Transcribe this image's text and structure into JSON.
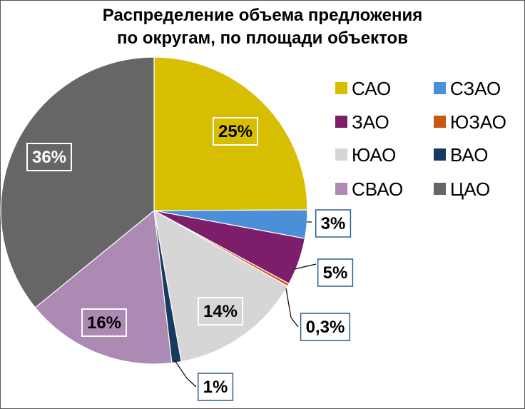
{
  "chart_data": {
    "type": "pie",
    "title_lines": [
      "Распределение объема предложения",
      "по округам, по площади объектов"
    ],
    "slices": [
      {
        "name": "САО",
        "value": 25,
        "label": "25%",
        "color": "#D8BE00"
      },
      {
        "name": "СЗАО",
        "value": 3,
        "label": "3%",
        "color": "#4A8FD8"
      },
      {
        "name": "ЗАО",
        "value": 5,
        "label": "5%",
        "color": "#7C1E6A"
      },
      {
        "name": "ЮЗАО",
        "value": 0.3,
        "label": "0,3%",
        "color": "#C85A10"
      },
      {
        "name": "ЮАО",
        "value": 14,
        "label": "14%",
        "color": "#D6D6D6"
      },
      {
        "name": "ВАО",
        "value": 1,
        "label": "1%",
        "color": "#173A5E"
      },
      {
        "name": "СВАО",
        "value": 16,
        "label": "16%",
        "color": "#AD8AB4"
      },
      {
        "name": "ЦАО",
        "value": 36,
        "label": "36%",
        "color": "#666666"
      }
    ],
    "legend_position": "right",
    "legend_columns": 2
  }
}
